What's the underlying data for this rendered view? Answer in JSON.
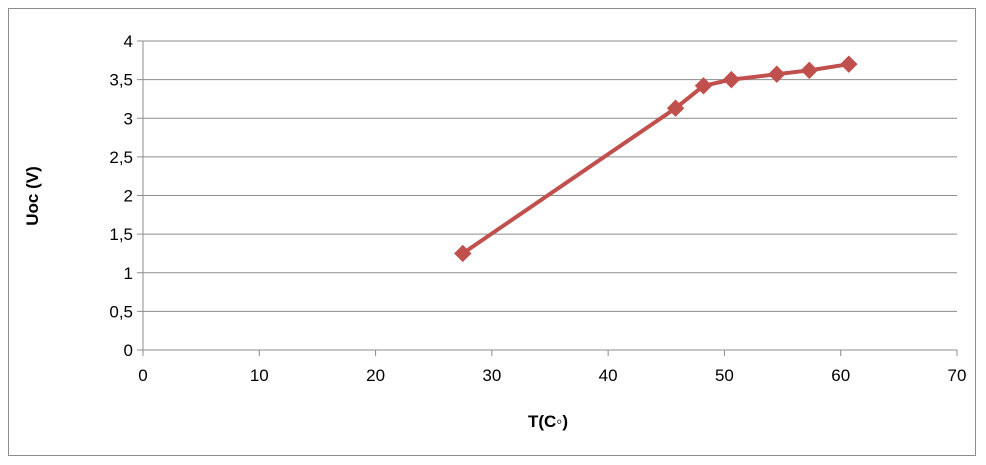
{
  "chart_data": {
    "type": "line",
    "title": "",
    "xlabel": "T(C◦)",
    "ylabel": "Uoc (V)",
    "xlim": [
      0,
      70
    ],
    "ylim": [
      0,
      4
    ],
    "x_ticks": [
      "0",
      "10",
      "20",
      "30",
      "40",
      "50",
      "60",
      "70"
    ],
    "y_ticks": [
      "0",
      "0,5",
      "1",
      "1,5",
      "2",
      "2,5",
      "3",
      "3,5",
      "4"
    ],
    "grid": "horizontal",
    "legend": "none",
    "series": [
      {
        "color": "#c0504d",
        "marker": "diamond",
        "x": [
          27.5,
          45.8,
          48.2,
          50.6,
          54.5,
          57.3,
          60.7
        ],
        "y": [
          1.25,
          3.13,
          3.42,
          3.5,
          3.57,
          3.62,
          3.7
        ]
      }
    ]
  }
}
